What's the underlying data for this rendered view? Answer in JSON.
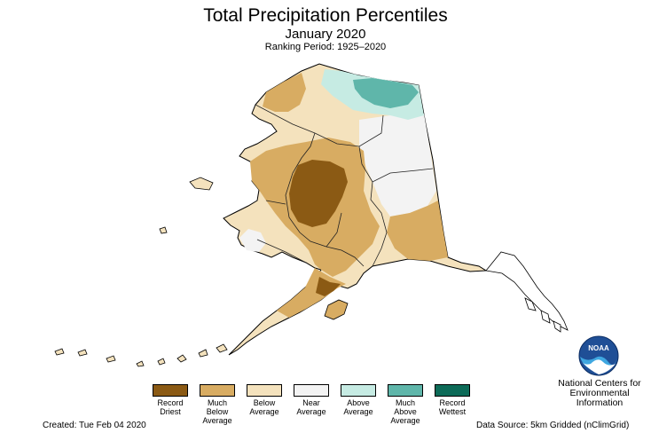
{
  "title": "Total Precipitation Percentiles",
  "subtitle": "January 2020",
  "ranking_period": "Ranking Period: 1925–2020",
  "legend": [
    {
      "label": "Record\nDriest",
      "color": "#8b5a14"
    },
    {
      "label": "Much\nBelow\nAverage",
      "color": "#d8ac62"
    },
    {
      "label": "Below\nAverage",
      "color": "#f4e2bd"
    },
    {
      "label": "Near\nAverage",
      "color": "#f3f3f3"
    },
    {
      "label": "Above\nAverage",
      "color": "#c6ebe3"
    },
    {
      "label": "Much\nAbove\nAverage",
      "color": "#5fb6aa"
    },
    {
      "label": "Record\nWettest",
      "color": "#0d6b58"
    }
  ],
  "org_name": "National Centers for\nEnvironmental\nInformation",
  "logo_text": "NOAA",
  "created": "Created: Tue Feb 04 2020",
  "data_source": "Data Source: 5km Gridded (nClimGrid)"
}
